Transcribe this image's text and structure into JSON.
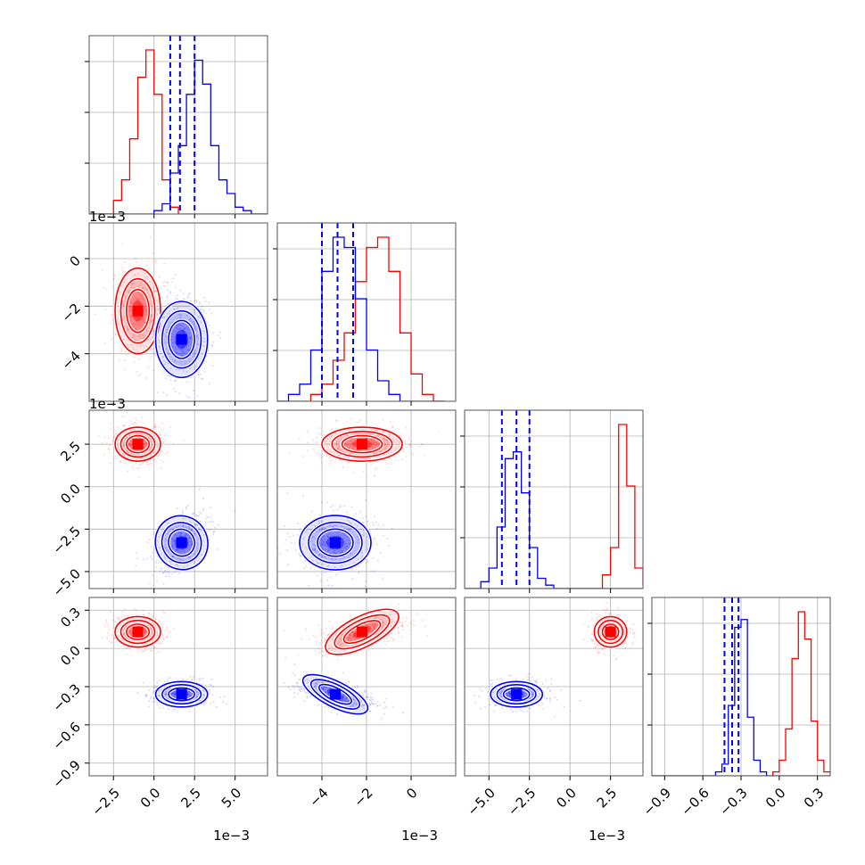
{
  "figure": {
    "description_type": "corner plot",
    "colors": {
      "series_a": "#ff0000",
      "series_b": "#0000ff",
      "grid": "#b0b0b0",
      "frame": "#555555"
    }
  },
  "axes": {
    "x": [
      {
        "ticks": [
          "−2.5",
          "0.0",
          "2.5",
          "5.0"
        ],
        "offset": "1e−3",
        "range": [
          -4.0,
          7.0
        ]
      },
      {
        "ticks": [
          "−4",
          "−2",
          "0"
        ],
        "offset": "1e−3",
        "range": [
          -6.0,
          2.0
        ]
      },
      {
        "ticks": [
          "−5.0",
          "−2.5",
          "0.0",
          "2.5"
        ],
        "offset": "1e−3",
        "range": [
          -6.5,
          4.5
        ]
      },
      {
        "ticks": [
          "−0.9",
          "−0.6",
          "−0.3",
          "0.0",
          "0.3"
        ],
        "offset": "",
        "range": [
          -1.0,
          0.4
        ]
      }
    ],
    "y": [
      {
        "ticks": [],
        "offset": ""
      },
      {
        "ticks": [
          "0",
          "−2",
          "−4"
        ],
        "offset": "1e−3",
        "range": [
          -6.0,
          1.5
        ]
      },
      {
        "ticks": [
          "2.5",
          "0.0",
          "−2.5",
          "−5.0"
        ],
        "offset": "1e−3",
        "range": [
          -6.0,
          4.5
        ]
      },
      {
        "ticks": [
          "0.3",
          "0.0",
          "−0.3",
          "−0.6",
          "−0.9"
        ],
        "offset": "",
        "range": [
          -1.0,
          0.4
        ]
      }
    ]
  },
  "chart_data": {
    "type": "corner",
    "parameters": 4,
    "series": [
      {
        "color": "#ff0000",
        "mean": [
          -1.0,
          -2.2,
          2.5,
          0.13
        ],
        "std": [
          0.7,
          0.9,
          0.5,
          0.06
        ]
      },
      {
        "color": "#0000ff",
        "mean": [
          1.7,
          -3.4,
          -3.3,
          -0.36
        ],
        "std": [
          0.8,
          0.8,
          0.8,
          0.05
        ]
      }
    ],
    "histograms": [
      {
        "bins": [
          -4,
          -3.5,
          -3,
          -2.5,
          -2,
          -1.5,
          -1,
          -0.5,
          0,
          0.5,
          1,
          1.5,
          2,
          2.5,
          3,
          3.5,
          4,
          4.5,
          5,
          5.5,
          6,
          6.5,
          7
        ],
        "red": [
          0,
          0,
          0,
          4,
          10,
          22,
          40,
          48,
          35,
          10,
          2,
          0,
          0,
          0,
          0,
          0,
          0,
          0,
          0,
          0,
          0,
          0
        ],
        "blue": [
          0,
          0,
          0,
          0,
          0,
          0,
          0,
          0,
          1,
          3,
          12,
          20,
          35,
          45,
          38,
          20,
          10,
          6,
          2,
          1,
          0,
          0
        ]
      },
      {
        "bins": [
          -6,
          -5.5,
          -5,
          -4.5,
          -4,
          -3.5,
          -3,
          -2.5,
          -2,
          -1.5,
          -1,
          -0.5,
          0,
          0.5,
          1,
          1.5
        ],
        "red": [
          0,
          0,
          0,
          2,
          5,
          12,
          20,
          35,
          45,
          48,
          38,
          20,
          8,
          2,
          0,
          0
        ],
        "blue": [
          0,
          2,
          5,
          15,
          38,
          48,
          45,
          30,
          15,
          6,
          2,
          0,
          0,
          0,
          0,
          0
        ]
      },
      {
        "bins": [
          -6.5,
          -6,
          -5.5,
          -5,
          -4.5,
          -4,
          -3.5,
          -3,
          -2.5,
          -2,
          -1.5,
          -1,
          -0.5,
          0,
          0.5,
          1,
          1.5,
          2,
          2.5,
          3,
          3.5,
          4,
          4.5
        ],
        "red": [
          0,
          0,
          0,
          0,
          0,
          0,
          0,
          0,
          0,
          0,
          0,
          0,
          0,
          0,
          0,
          0,
          0,
          4,
          12,
          48,
          30,
          6,
          1
        ],
        "blue": [
          0,
          0,
          2,
          6,
          18,
          38,
          40,
          28,
          12,
          3,
          1,
          0,
          0,
          0,
          0,
          0,
          0,
          0,
          0,
          0,
          0,
          0,
          0
        ]
      },
      {
        "bins": [
          -1.0,
          -0.95,
          -0.9,
          -0.85,
          -0.8,
          -0.75,
          -0.7,
          -0.65,
          -0.6,
          -0.55,
          -0.5,
          -0.45,
          -0.4,
          -0.35,
          -0.3,
          -0.25,
          -0.2,
          -0.15,
          -0.1,
          -0.05,
          0.0,
          0.05,
          0.1,
          0.15,
          0.2,
          0.25,
          0.3,
          0.35,
          0.4
        ],
        "red": [
          0,
          0,
          0,
          0,
          0,
          0,
          0,
          0,
          0,
          0,
          0,
          0,
          0,
          0,
          0,
          0,
          0,
          0,
          0,
          1,
          4,
          12,
          30,
          42,
          35,
          14,
          4,
          1,
          0
        ],
        "blue": [
          0,
          0,
          0,
          0,
          0,
          0,
          0,
          0,
          0,
          0,
          1,
          3,
          18,
          38,
          40,
          15,
          4,
          1,
          0,
          0,
          0,
          0,
          0,
          0,
          0,
          0,
          0,
          0,
          0
        ]
      }
    ],
    "quantile_lines": [
      [
        1.0,
        1.6,
        2.5
      ],
      [
        -4.0,
        -3.3,
        -2.6
      ],
      [
        -4.2,
        -3.3,
        -2.5
      ],
      [
        -0.43,
        -0.37,
        -0.32
      ]
    ]
  }
}
